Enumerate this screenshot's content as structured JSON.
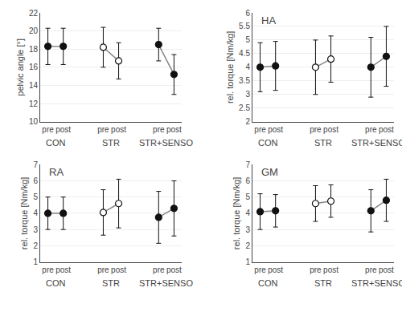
{
  "chart_data": [
    {
      "type": "line",
      "ylabel": "pelvic angle [°]",
      "categories": [
        "pre",
        "post"
      ],
      "series": [
        {
          "name": "CON",
          "values": [
            18.3,
            18.3
          ],
          "errors": [
            2.0,
            2.0
          ],
          "marker": "filled"
        },
        {
          "name": "STR",
          "values": [
            18.2,
            16.7
          ],
          "errors": [
            2.2,
            2.0
          ],
          "marker": "open"
        },
        {
          "name": "STR+SENSO",
          "values": [
            18.5,
            15.2
          ],
          "errors": [
            1.8,
            2.2
          ],
          "marker": "filled"
        }
      ],
      "ylim": [
        10,
        22
      ],
      "yticks": [
        10,
        12,
        14,
        16,
        18,
        20,
        22
      ],
      "grid": true,
      "color": "#111111"
    },
    {
      "type": "line",
      "label": "HA",
      "ylabel": "rel. torque [Nm/kg]",
      "categories": [
        "pre",
        "post"
      ],
      "series": [
        {
          "name": "CON",
          "values": [
            4.0,
            4.05
          ],
          "errors": [
            0.9,
            0.9
          ],
          "marker": "filled"
        },
        {
          "name": "STR",
          "values": [
            4.0,
            4.3
          ],
          "errors": [
            1.0,
            0.85
          ],
          "marker": "open"
        },
        {
          "name": "STR+SENSO",
          "values": [
            4.0,
            4.4
          ],
          "errors": [
            1.1,
            1.1
          ],
          "marker": "filled"
        }
      ],
      "ylim": [
        2,
        6
      ],
      "yticks": [
        2,
        2.5,
        3,
        3.5,
        4,
        4.5,
        5,
        5.5,
        6
      ],
      "grid": true,
      "color": "#111111"
    },
    {
      "type": "line",
      "label": "RA",
      "ylabel": "rel. torque [Nm/kg]",
      "categories": [
        "pre",
        "post"
      ],
      "series": [
        {
          "name": "CON",
          "values": [
            4.0,
            4.0
          ],
          "errors": [
            1.0,
            1.0
          ],
          "marker": "filled"
        },
        {
          "name": "STR",
          "values": [
            4.05,
            4.6
          ],
          "errors": [
            1.4,
            1.5
          ],
          "marker": "open"
        },
        {
          "name": "STR+SENSO",
          "values": [
            3.75,
            4.3
          ],
          "errors": [
            1.6,
            1.7
          ],
          "marker": "filled"
        }
      ],
      "ylim": [
        1,
        7
      ],
      "yticks": [
        1,
        2,
        3,
        4,
        5,
        6,
        7
      ],
      "grid": true,
      "color": "#111111"
    },
    {
      "type": "line",
      "label": "GM",
      "ylabel": "rel. torque [Nm/kg]",
      "categories": [
        "pre",
        "post"
      ],
      "series": [
        {
          "name": "CON",
          "values": [
            4.1,
            4.15
          ],
          "errors": [
            1.1,
            1.0
          ],
          "marker": "filled"
        },
        {
          "name": "STR",
          "values": [
            4.6,
            4.75
          ],
          "errors": [
            1.1,
            1.0
          ],
          "marker": "open"
        },
        {
          "name": "STR+SENSO",
          "values": [
            4.15,
            4.8
          ],
          "errors": [
            1.3,
            1.3
          ],
          "marker": "filled"
        }
      ],
      "ylim": [
        1,
        7
      ],
      "yticks": [
        1,
        2,
        3,
        4,
        5,
        6,
        7
      ],
      "grid": true,
      "color": "#111111"
    }
  ]
}
